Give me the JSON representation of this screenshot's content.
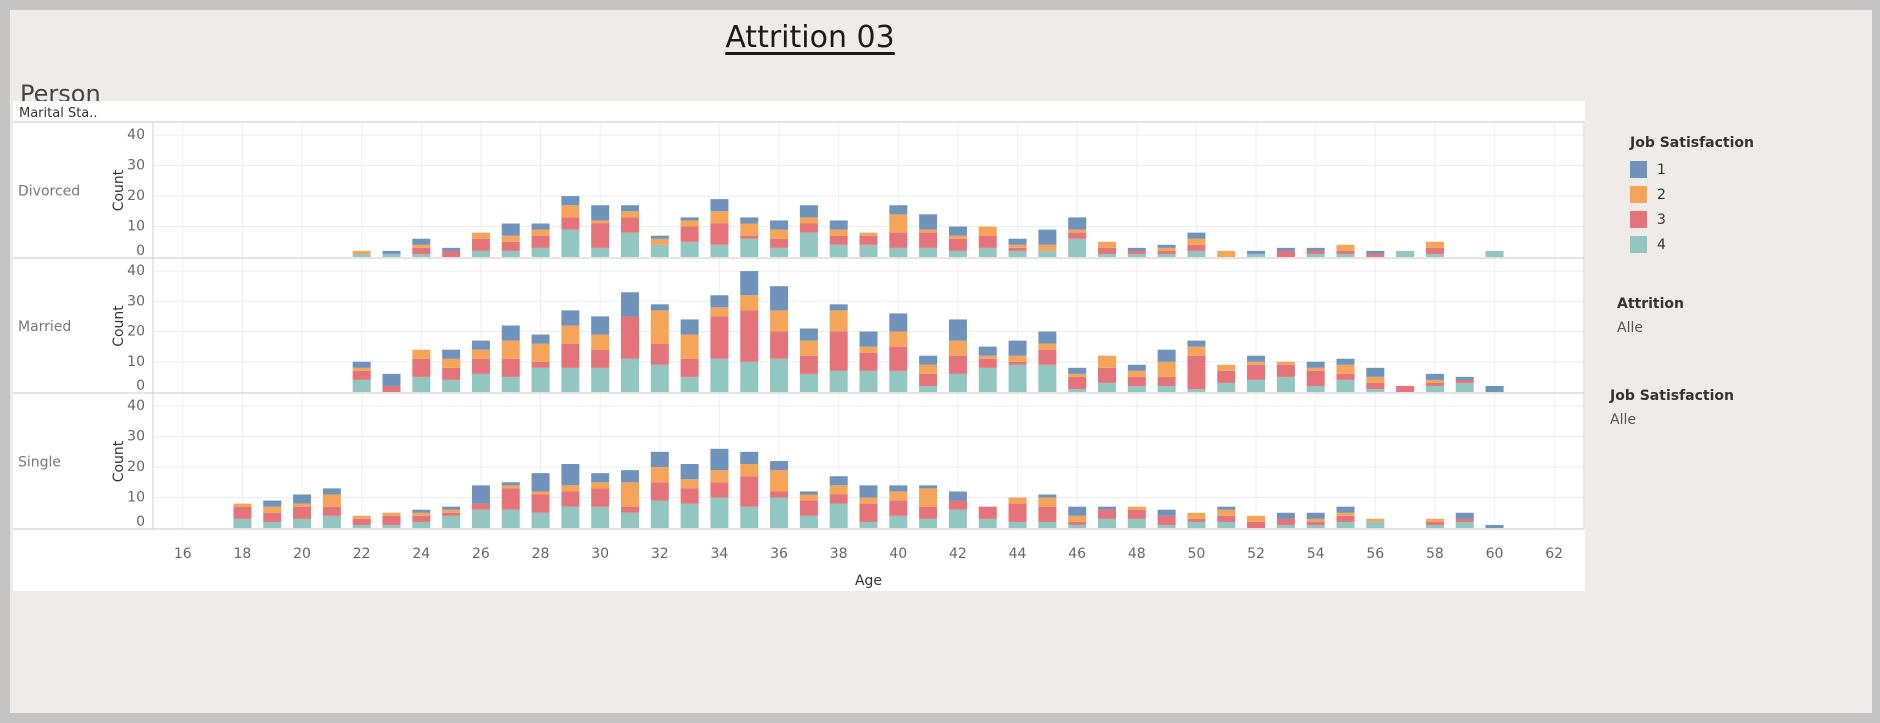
{
  "dashboard": {
    "title": "Attrition 03",
    "subtitle": "Person"
  },
  "legend": {
    "title": "Job Satisfaction",
    "items": [
      {
        "label": "1",
        "color": "#6f93ba"
      },
      {
        "label": "2",
        "color": "#f4a55a"
      },
      {
        "label": "3",
        "color": "#e5737a"
      },
      {
        "label": "4",
        "color": "#91c6c1"
      }
    ]
  },
  "filters": [
    {
      "title": "Attrition",
      "value": "Alle"
    },
    {
      "title": "Job Satisfaction",
      "value": "Alle"
    }
  ],
  "chart_data": {
    "type": "bar",
    "stacked": true,
    "row_header": "Marital Sta..",
    "xlabel": "Age",
    "ylabel": "Count",
    "x_ticks": [
      16,
      18,
      20,
      22,
      24,
      26,
      28,
      30,
      32,
      34,
      36,
      38,
      40,
      42,
      44,
      46,
      48,
      50,
      52,
      54,
      56,
      58,
      60,
      62
    ],
    "y_ticks": [
      0,
      10,
      20,
      30,
      40
    ],
    "ylim": [
      0,
      40
    ],
    "xlim": [
      15,
      63
    ],
    "series_names": [
      "1",
      "2",
      "3",
      "4"
    ],
    "panels": [
      {
        "name": "Divorced",
        "data": [
          {
            "age": 22,
            "v": [
              0,
              1,
              0,
              1
            ]
          },
          {
            "age": 23,
            "v": [
              1,
              0,
              0,
              1
            ]
          },
          {
            "age": 24,
            "v": [
              2,
              1,
              2,
              1
            ]
          },
          {
            "age": 25,
            "v": [
              1,
              0,
              2,
              0
            ]
          },
          {
            "age": 26,
            "v": [
              0,
              2,
              4,
              2
            ]
          },
          {
            "age": 27,
            "v": [
              4,
              2,
              3,
              2
            ]
          },
          {
            "age": 28,
            "v": [
              2,
              2,
              4,
              3
            ]
          },
          {
            "age": 29,
            "v": [
              3,
              4,
              4,
              9
            ]
          },
          {
            "age": 30,
            "v": [
              5,
              1,
              8,
              3
            ]
          },
          {
            "age": 31,
            "v": [
              2,
              2,
              5,
              8
            ]
          },
          {
            "age": 32,
            "v": [
              1,
              2,
              0,
              4
            ]
          },
          {
            "age": 33,
            "v": [
              1,
              2,
              5,
              5
            ]
          },
          {
            "age": 34,
            "v": [
              4,
              4,
              7,
              4
            ]
          },
          {
            "age": 35,
            "v": [
              2,
              4,
              1,
              6
            ]
          },
          {
            "age": 36,
            "v": [
              3,
              3,
              3,
              3
            ]
          },
          {
            "age": 37,
            "v": [
              4,
              2,
              3,
              8
            ]
          },
          {
            "age": 38,
            "v": [
              3,
              2,
              3,
              4
            ]
          },
          {
            "age": 39,
            "v": [
              0,
              1,
              3,
              4
            ]
          },
          {
            "age": 40,
            "v": [
              3,
              6,
              5,
              3
            ]
          },
          {
            "age": 41,
            "v": [
              5,
              1,
              5,
              3
            ]
          },
          {
            "age": 42,
            "v": [
              3,
              1,
              4,
              2
            ]
          },
          {
            "age": 43,
            "v": [
              0,
              3,
              4,
              3
            ]
          },
          {
            "age": 44,
            "v": [
              2,
              1,
              1,
              2
            ]
          },
          {
            "age": 45,
            "v": [
              5,
              2,
              0,
              2
            ]
          },
          {
            "age": 46,
            "v": [
              4,
              1,
              2,
              6
            ]
          },
          {
            "age": 47,
            "v": [
              0,
              2,
              2,
              1
            ]
          },
          {
            "age": 48,
            "v": [
              1,
              0,
              1,
              1
            ]
          },
          {
            "age": 49,
            "v": [
              1,
              1,
              1,
              1
            ]
          },
          {
            "age": 50,
            "v": [
              2,
              2,
              2,
              2
            ]
          },
          {
            "age": 51,
            "v": [
              0,
              2,
              0,
              0
            ]
          },
          {
            "age": 52,
            "v": [
              1,
              0,
              0,
              1
            ]
          },
          {
            "age": 53,
            "v": [
              1,
              0,
              2,
              0
            ]
          },
          {
            "age": 54,
            "v": [
              1,
              0,
              1,
              1
            ]
          },
          {
            "age": 55,
            "v": [
              0,
              2,
              1,
              1
            ]
          },
          {
            "age": 56,
            "v": [
              1,
              0,
              1,
              0
            ]
          },
          {
            "age": 57,
            "v": [
              0,
              0,
              0,
              2
            ]
          },
          {
            "age": 58,
            "v": [
              0,
              2,
              2,
              1
            ]
          },
          {
            "age": 60,
            "v": [
              0,
              0,
              0,
              2
            ]
          }
        ]
      },
      {
        "name": "Married",
        "data": [
          {
            "age": 22,
            "v": [
              2,
              1,
              3,
              4
            ]
          },
          {
            "age": 23,
            "v": [
              4,
              0,
              2,
              0
            ]
          },
          {
            "age": 24,
            "v": [
              0,
              3,
              6,
              5
            ]
          },
          {
            "age": 25,
            "v": [
              3,
              3,
              4,
              4
            ]
          },
          {
            "age": 26,
            "v": [
              3,
              3,
              5,
              6
            ]
          },
          {
            "age": 27,
            "v": [
              5,
              6,
              6,
              5
            ]
          },
          {
            "age": 28,
            "v": [
              3,
              6,
              2,
              8
            ]
          },
          {
            "age": 29,
            "v": [
              5,
              6,
              8,
              8
            ]
          },
          {
            "age": 30,
            "v": [
              6,
              5,
              6,
              8
            ]
          },
          {
            "age": 31,
            "v": [
              8,
              0,
              14,
              11
            ]
          },
          {
            "age": 32,
            "v": [
              2,
              11,
              7,
              9
            ]
          },
          {
            "age": 33,
            "v": [
              5,
              8,
              6,
              5
            ]
          },
          {
            "age": 34,
            "v": [
              4,
              3,
              14,
              11
            ]
          },
          {
            "age": 35,
            "v": [
              8,
              5,
              17,
              10
            ]
          },
          {
            "age": 36,
            "v": [
              8,
              7,
              9,
              11
            ]
          },
          {
            "age": 37,
            "v": [
              4,
              5,
              6,
              6
            ]
          },
          {
            "age": 38,
            "v": [
              2,
              7,
              13,
              7
            ]
          },
          {
            "age": 39,
            "v": [
              5,
              2,
              6,
              7
            ]
          },
          {
            "age": 40,
            "v": [
              6,
              5,
              8,
              7
            ]
          },
          {
            "age": 41,
            "v": [
              3,
              3,
              4,
              2
            ]
          },
          {
            "age": 42,
            "v": [
              7,
              5,
              6,
              6
            ]
          },
          {
            "age": 43,
            "v": [
              3,
              1,
              3,
              8
            ]
          },
          {
            "age": 44,
            "v": [
              5,
              2,
              1,
              9
            ]
          },
          {
            "age": 45,
            "v": [
              4,
              2,
              5,
              9
            ]
          },
          {
            "age": 46,
            "v": [
              2,
              1,
              4,
              1
            ]
          },
          {
            "age": 47,
            "v": [
              0,
              4,
              5,
              3
            ]
          },
          {
            "age": 48,
            "v": [
              2,
              2,
              3,
              2
            ]
          },
          {
            "age": 49,
            "v": [
              4,
              5,
              3,
              2
            ]
          },
          {
            "age": 50,
            "v": [
              2,
              3,
              11,
              1
            ]
          },
          {
            "age": 51,
            "v": [
              0,
              2,
              4,
              3
            ]
          },
          {
            "age": 52,
            "v": [
              2,
              1,
              5,
              4
            ]
          },
          {
            "age": 53,
            "v": [
              0,
              1,
              4,
              5
            ]
          },
          {
            "age": 54,
            "v": [
              2,
              1,
              5,
              2
            ]
          },
          {
            "age": 55,
            "v": [
              2,
              3,
              2,
              4
            ]
          },
          {
            "age": 56,
            "v": [
              3,
              2,
              2,
              1
            ]
          },
          {
            "age": 57,
            "v": [
              0,
              0,
              2,
              0
            ]
          },
          {
            "age": 58,
            "v": [
              2,
              1,
              1,
              2
            ]
          },
          {
            "age": 59,
            "v": [
              1,
              0,
              1,
              3
            ]
          },
          {
            "age": 60,
            "v": [
              2,
              0,
              0,
              0
            ]
          }
        ]
      },
      {
        "name": "Single",
        "data": [
          {
            "age": 18,
            "v": [
              0,
              1,
              4,
              3
            ]
          },
          {
            "age": 19,
            "v": [
              2,
              2,
              3,
              2
            ]
          },
          {
            "age": 20,
            "v": [
              3,
              1,
              4,
              3
            ]
          },
          {
            "age": 21,
            "v": [
              2,
              4,
              3,
              4
            ]
          },
          {
            "age": 22,
            "v": [
              0,
              1,
              2,
              1
            ]
          },
          {
            "age": 23,
            "v": [
              0,
              1,
              3,
              1
            ]
          },
          {
            "age": 24,
            "v": [
              1,
              1,
              2,
              2
            ]
          },
          {
            "age": 25,
            "v": [
              1,
              1,
              1,
              4
            ]
          },
          {
            "age": 26,
            "v": [
              6,
              0,
              2,
              6
            ]
          },
          {
            "age": 27,
            "v": [
              1,
              1,
              7,
              6
            ]
          },
          {
            "age": 28,
            "v": [
              6,
              1,
              6,
              5
            ]
          },
          {
            "age": 29,
            "v": [
              7,
              2,
              5,
              7
            ]
          },
          {
            "age": 30,
            "v": [
              3,
              2,
              6,
              7
            ]
          },
          {
            "age": 31,
            "v": [
              4,
              8,
              2,
              5
            ]
          },
          {
            "age": 32,
            "v": [
              5,
              5,
              6,
              9
            ]
          },
          {
            "age": 33,
            "v": [
              5,
              3,
              5,
              8
            ]
          },
          {
            "age": 34,
            "v": [
              7,
              4,
              5,
              10
            ]
          },
          {
            "age": 35,
            "v": [
              4,
              4,
              10,
              7
            ]
          },
          {
            "age": 36,
            "v": [
              3,
              7,
              2,
              10
            ]
          },
          {
            "age": 37,
            "v": [
              1,
              2,
              5,
              4
            ]
          },
          {
            "age": 38,
            "v": [
              3,
              3,
              3,
              8
            ]
          },
          {
            "age": 39,
            "v": [
              4,
              2,
              6,
              2
            ]
          },
          {
            "age": 40,
            "v": [
              2,
              3,
              5,
              4
            ]
          },
          {
            "age": 41,
            "v": [
              1,
              6,
              4,
              3
            ]
          },
          {
            "age": 42,
            "v": [
              3,
              0,
              3,
              6
            ]
          },
          {
            "age": 43,
            "v": [
              0,
              0,
              4,
              3
            ]
          },
          {
            "age": 44,
            "v": [
              0,
              2,
              6,
              2
            ]
          },
          {
            "age": 45,
            "v": [
              1,
              3,
              5,
              2
            ]
          },
          {
            "age": 46,
            "v": [
              3,
              2,
              1,
              1
            ]
          },
          {
            "age": 47,
            "v": [
              1,
              0,
              3,
              3
            ]
          },
          {
            "age": 48,
            "v": [
              0,
              1,
              3,
              3
            ]
          },
          {
            "age": 49,
            "v": [
              2,
              0,
              3,
              1
            ]
          },
          {
            "age": 50,
            "v": [
              0,
              2,
              1,
              2
            ]
          },
          {
            "age": 51,
            "v": [
              1,
              2,
              2,
              2
            ]
          },
          {
            "age": 52,
            "v": [
              0,
              2,
              2,
              0
            ]
          },
          {
            "age": 53,
            "v": [
              2,
              0,
              2,
              1
            ]
          },
          {
            "age": 54,
            "v": [
              2,
              1,
              1,
              1
            ]
          },
          {
            "age": 55,
            "v": [
              2,
              1,
              2,
              2
            ]
          },
          {
            "age": 56,
            "v": [
              0,
              1,
              0,
              2
            ]
          },
          {
            "age": 58,
            "v": [
              0,
              1,
              1,
              1
            ]
          },
          {
            "age": 59,
            "v": [
              2,
              0,
              1,
              2
            ]
          },
          {
            "age": 60,
            "v": [
              1,
              0,
              0,
              0
            ]
          }
        ]
      }
    ]
  }
}
